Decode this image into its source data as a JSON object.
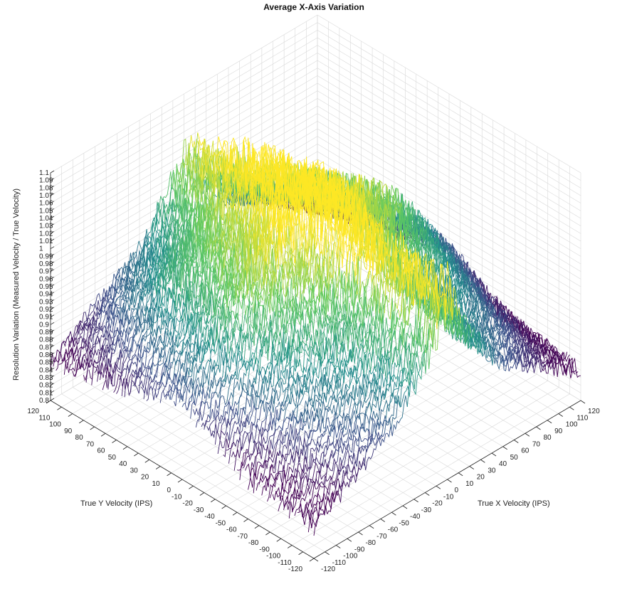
{
  "chart_data": {
    "type": "surface",
    "title": "Average X-Axis Variation",
    "xlabel": "True X Velocity (IPS)",
    "ylabel": "True Y Velocity (IPS)",
    "zlabel": "Resolution Variation (Measured Velocity / True Velocity)",
    "xlim": [
      -120,
      120
    ],
    "ylim": [
      -120,
      120
    ],
    "zlim": [
      0.8,
      1.1
    ],
    "x_ticks": [
      "-120",
      "-110",
      "-100",
      "-90",
      "-80",
      "-70",
      "-60",
      "-50",
      "-40",
      "-30",
      "-20",
      "-10",
      "0",
      "10",
      "20",
      "30",
      "40",
      "50",
      "60",
      "70",
      "80",
      "90",
      "100",
      "110",
      "120"
    ],
    "y_ticks": [
      "-120",
      "-110",
      "-100",
      "-90",
      "-80",
      "-70",
      "-60",
      "-50",
      "-40",
      "-30",
      "-20",
      "-10",
      "0",
      "10",
      "20",
      "30",
      "40",
      "50",
      "60",
      "70",
      "80",
      "90",
      "100",
      "110",
      "120"
    ],
    "z_ticks": [
      "0.8",
      "0.81",
      "0.82",
      "0.83",
      "0.84",
      "0.85",
      "0.86",
      "0.87",
      "0.88",
      "0.89",
      "0.9",
      "0.91",
      "0.92",
      "0.93",
      "0.94",
      "0.95",
      "0.96",
      "0.97",
      "0.98",
      "0.99",
      "1",
      "1.01",
      "1.02",
      "1.03",
      "1.04",
      "1.05",
      "1.06",
      "1.07",
      "1.08",
      "1.09",
      "1.1"
    ],
    "colormap": [
      "#440154",
      "#3b528b",
      "#21918c",
      "#5ec962",
      "#fde725"
    ],
    "grid": true,
    "series": [
      {
        "values_by_y": [
          {
            "y": -120,
            "z": [
              0.84,
              0.85,
              0.86,
              0.87,
              0.88,
              0.89,
              0.9,
              0.91,
              0.93,
              0.95,
              0.97,
              1.0,
              1.05,
              1.0,
              0.97,
              0.95,
              0.93,
              0.91,
              0.9,
              0.89,
              0.88,
              0.87,
              0.86,
              0.85,
              0.84
            ]
          },
          {
            "y": -60,
            "z": [
              0.85,
              0.87,
              0.89,
              0.91,
              0.93,
              0.94,
              0.95,
              0.96,
              0.97,
              0.98,
              0.99,
              1.02,
              1.06,
              1.02,
              0.99,
              0.98,
              0.97,
              0.96,
              0.95,
              0.94,
              0.93,
              0.91,
              0.89,
              0.87,
              0.85
            ]
          },
          {
            "y": 0,
            "z": [
              0.9,
              0.92,
              0.94,
              0.96,
              0.98,
              1.0,
              1.01,
              1.02,
              1.03,
              1.04,
              1.05,
              1.07,
              1.09,
              1.07,
              1.05,
              1.04,
              1.03,
              1.02,
              1.01,
              1.0,
              0.98,
              0.96,
              0.94,
              0.92,
              0.9
            ]
          },
          {
            "y": 60,
            "z": [
              0.87,
              0.89,
              0.91,
              0.93,
              0.95,
              0.97,
              0.98,
              0.99,
              1.0,
              1.01,
              1.02,
              1.04,
              1.06,
              1.04,
              1.02,
              1.01,
              1.0,
              0.99,
              0.98,
              0.97,
              0.95,
              0.93,
              0.91,
              0.89,
              0.87
            ]
          },
          {
            "y": 120,
            "z": [
              0.85,
              0.86,
              0.87,
              0.88,
              0.89,
              0.9,
              0.91,
              0.92,
              0.93,
              0.95,
              0.97,
              0.99,
              1.02,
              0.99,
              0.97,
              0.95,
              0.93,
              0.92,
              0.91,
              0.9,
              0.89,
              0.88,
              0.87,
              0.86,
              0.85
            ]
          }
        ]
      }
    ]
  }
}
